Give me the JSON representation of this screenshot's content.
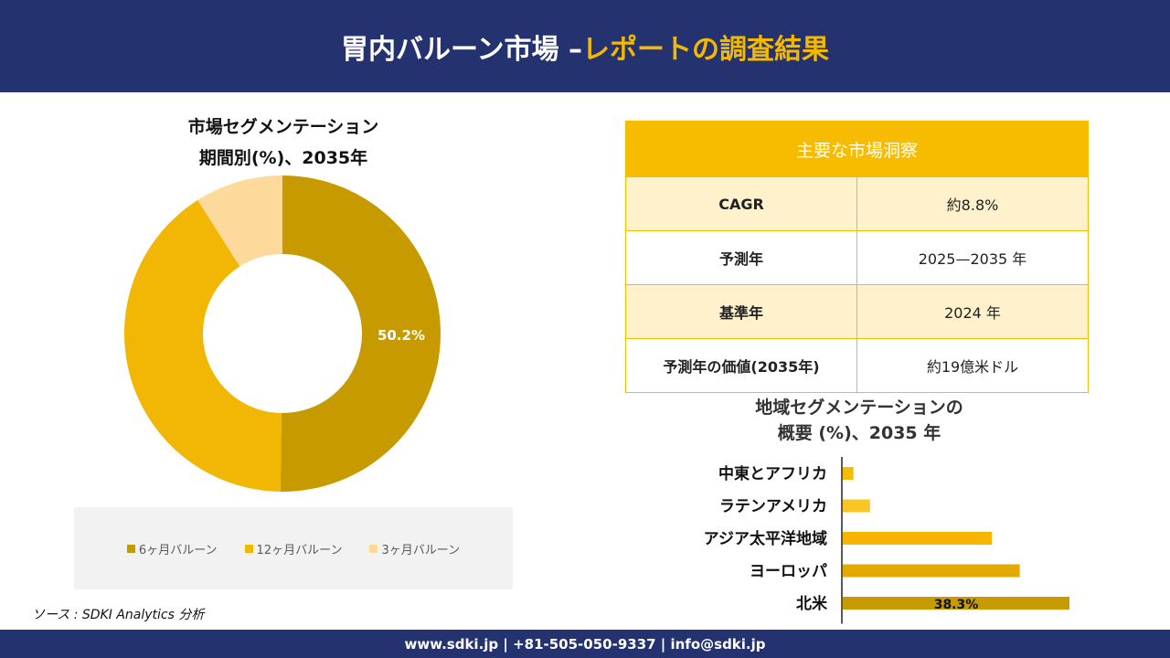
{
  "header": {
    "title_main": "胃内バルーン市場 –",
    "title_accent": "レポートの調査結果"
  },
  "segment_chart": {
    "title_line1": "市場セグメンテーション",
    "title_line2": "期間別(%)、2035年"
  },
  "insights": {
    "heading": "主要な市場洞察",
    "rows": [
      {
        "key": "CAGR",
        "value": "約8.8%"
      },
      {
        "key": "予測年",
        "value": "2025—2035 年"
      },
      {
        "key": "基準年",
        "value": "2024 年"
      },
      {
        "key": "予測年の価値(2035年)",
        "value": "約19億米ドル"
      }
    ]
  },
  "region_chart": {
    "title_line1": "地域セグメンテーションの",
    "title_line2": "概要 (%)、2035 年"
  },
  "source": "ソース : SDKI Analytics 分析",
  "footer": {
    "contact": "www.sdki.jp | +81-505-050-9337 | info@sdki.jp"
  },
  "chart_data": [
    {
      "type": "pie",
      "title": "市場セグメンテーション 期間別(%)、2035年",
      "categories": [
        "6ヶ月バルーン",
        "12ヶ月バルーン",
        "3ヶ月バルーン"
      ],
      "values": [
        50.2,
        40.8,
        9.0
      ],
      "colors": [
        "#c79a00",
        "#f2b705",
        "#fdd99b"
      ],
      "labels": [
        "50.2%",
        "",
        ""
      ],
      "legend": "bottom"
    },
    {
      "type": "bar",
      "orientation": "horizontal",
      "title": "地域セグメンテーションの 概要 (%)、2035 年",
      "categories": [
        "中東とアフリカ",
        "ラテンアメリカ",
        "アジア太平洋地域",
        "ヨーロッパ",
        "北米"
      ],
      "values": [
        1.8,
        4.6,
        25.2,
        29.9,
        38.3
      ],
      "colors": [
        "#f7bb00",
        "#f9c623",
        "#f5b500",
        "#e2a900",
        "#c79a00"
      ],
      "labels": [
        "",
        "",
        "",
        "",
        "38.3%"
      ],
      "xlim": [
        0,
        38.3
      ]
    }
  ]
}
